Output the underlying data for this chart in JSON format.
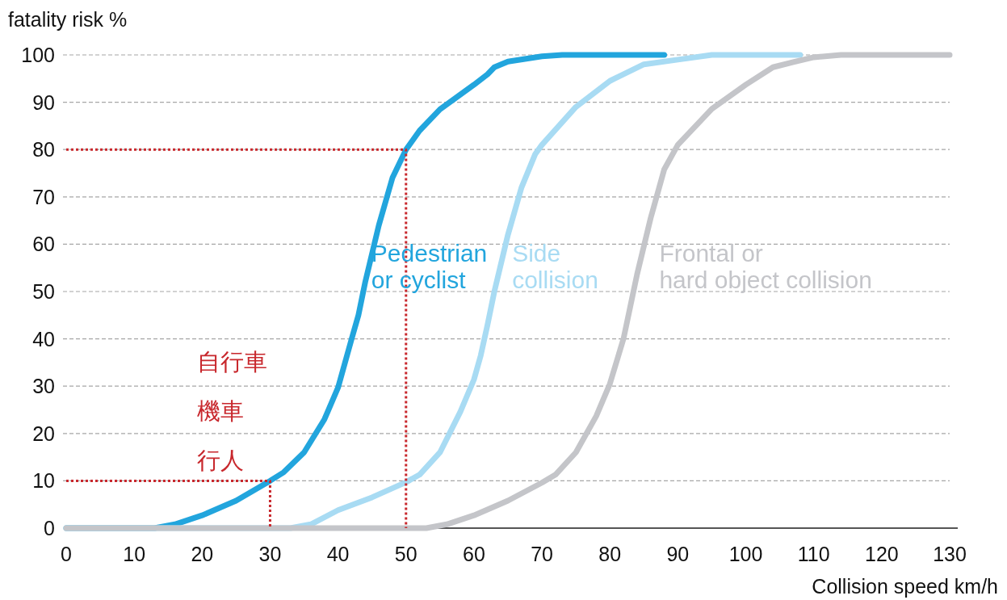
{
  "chart_data": {
    "type": "line",
    "xlabel": "Collision speed km/h",
    "ylabel": "fatality risk %",
    "xlim": [
      0,
      130
    ],
    "xticks": [
      0,
      10,
      20,
      30,
      40,
      50,
      60,
      70,
      80,
      90,
      100,
      110,
      120,
      130
    ],
    "ylim": [
      0,
      100
    ],
    "yticks": [
      0,
      10,
      20,
      30,
      40,
      50,
      60,
      70,
      80,
      90,
      100
    ],
    "grid": "y",
    "line_style": "solid",
    "series": [
      {
        "name": "Pedestrian\nor cyclist",
        "color": "#22a5dd",
        "x": [
          0,
          13,
          16,
          20,
          25,
          30,
          32,
          35,
          38,
          40,
          42,
          43,
          44,
          46,
          48,
          50,
          52,
          55,
          60,
          62,
          63,
          65,
          70,
          73,
          88
        ],
        "values": [
          0,
          0,
          0.8,
          2.7,
          5.8,
          10,
          11.8,
          16,
          23,
          29.7,
          40,
          45,
          52,
          64,
          74,
          80,
          84,
          88.5,
          93.7,
          95.9,
          97.4,
          98.6,
          99.7,
          100,
          100
        ]
      },
      {
        "name": "Side\ncollision",
        "color": "#a8dbf3",
        "x": [
          0,
          33,
          36,
          40,
          45,
          50,
          52,
          55,
          58,
          60,
          61,
          62,
          63,
          65,
          67,
          69,
          70,
          75,
          80,
          85,
          90,
          95,
          108
        ],
        "values": [
          0,
          0,
          0.8,
          3.8,
          6.5,
          9.7,
          11.3,
          16,
          24.6,
          31.4,
          36.5,
          43,
          50,
          62,
          72,
          79,
          81,
          89,
          94.5,
          98,
          99,
          100,
          100
        ]
      },
      {
        "name": "Frontal or\nhard object collision",
        "color": "#c4c5c9",
        "x": [
          0,
          53,
          56,
          60,
          65,
          70,
          72,
          75,
          78,
          80,
          82,
          83,
          84,
          86,
          88,
          90,
          95,
          100,
          104,
          107,
          110,
          114,
          130
        ],
        "values": [
          0,
          0,
          0.8,
          2.7,
          5.8,
          9.6,
          11.3,
          16,
          23.7,
          30.5,
          40,
          46.8,
          53.6,
          65.5,
          75.8,
          81,
          88.6,
          93.7,
          97.4,
          98.5,
          99.5,
          100,
          100
        ]
      },
      {
        "color": "#c8282d",
        "line_style": "dotted",
        "x": [
          0,
          50,
          50
        ],
        "values": [
          80,
          80,
          0
        ]
      },
      {
        "color": "#c8282d",
        "line_style": "dotted",
        "x": [
          0,
          30,
          30
        ],
        "values": [
          10,
          10,
          0
        ]
      }
    ],
    "annotations": [
      "自行車",
      "機車",
      "行人"
    ]
  }
}
